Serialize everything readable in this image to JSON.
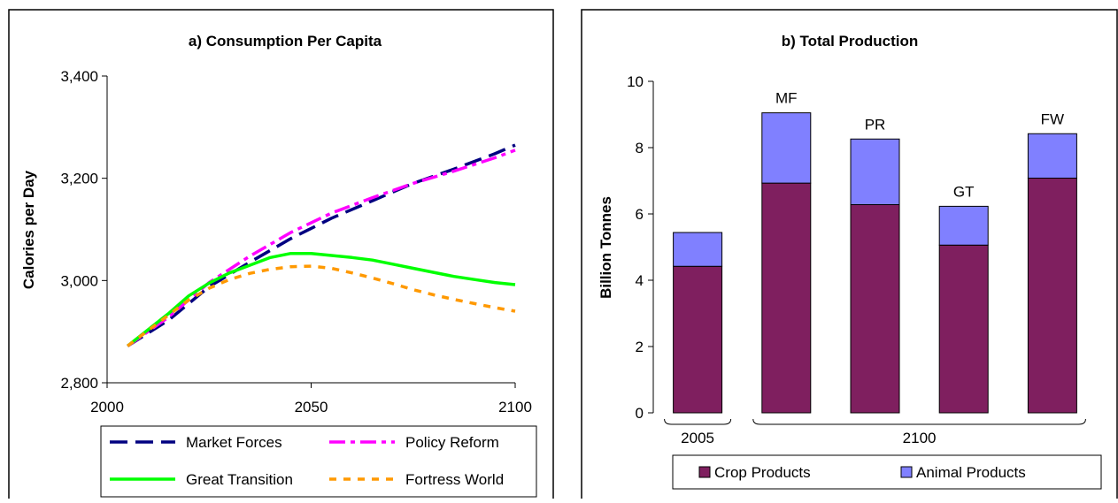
{
  "chart_data": [
    {
      "type": "line",
      "title": "a) Consumption Per Capita",
      "xlabel": "",
      "ylabel": "Calories per Day",
      "xlim": [
        2000,
        2100
      ],
      "ylim": [
        2800,
        3400
      ],
      "x_ticks": [
        "2000",
        "2050",
        "2100"
      ],
      "y_ticks": [
        "2,800",
        "3,000",
        "3,200",
        "3,400"
      ],
      "grid": false,
      "legend_position": "bottom",
      "series": [
        {
          "name": "Market Forces",
          "color": "#000080",
          "dash": "long",
          "x": [
            2005,
            2015,
            2025,
            2035,
            2045,
            2055,
            2065,
            2075,
            2085,
            2095,
            2100
          ],
          "y": [
            2872,
            2922,
            2988,
            3036,
            3082,
            3122,
            3156,
            3190,
            3218,
            3248,
            3265
          ]
        },
        {
          "name": "Policy Reform",
          "color": "#FF00FF",
          "dash": "dashdot",
          "x": [
            2005,
            2015,
            2025,
            2035,
            2045,
            2055,
            2065,
            2075,
            2085,
            2095,
            2100
          ],
          "y": [
            2872,
            2928,
            2996,
            3048,
            3094,
            3132,
            3162,
            3190,
            3214,
            3240,
            3255
          ]
        },
        {
          "name": "Great Transition",
          "color": "#00FF00",
          "dash": "solid",
          "x": [
            2005,
            2015,
            2020,
            2025,
            2030,
            2035,
            2040,
            2045,
            2050,
            2055,
            2060,
            2065,
            2070,
            2075,
            2080,
            2085,
            2090,
            2095,
            2100
          ],
          "y": [
            2872,
            2935,
            2970,
            2995,
            3015,
            3030,
            3045,
            3053,
            3053,
            3049,
            3045,
            3040,
            3032,
            3024,
            3016,
            3008,
            3002,
            2996,
            2992
          ]
        },
        {
          "name": "Fortress World",
          "color": "#FF9900",
          "dash": "short",
          "x": [
            2005,
            2015,
            2020,
            2025,
            2030,
            2035,
            2040,
            2045,
            2050,
            2055,
            2060,
            2065,
            2070,
            2075,
            2080,
            2085,
            2090,
            2095,
            2100
          ],
          "y": [
            2872,
            2932,
            2962,
            2985,
            3002,
            3014,
            3022,
            3027,
            3028,
            3024,
            3015,
            3005,
            2994,
            2982,
            2972,
            2963,
            2955,
            2947,
            2940
          ]
        }
      ]
    },
    {
      "type": "bar",
      "stacked": true,
      "title": "b) Total Production",
      "xlabel": "",
      "ylabel": "Billion Tonnes",
      "ylim": [
        0,
        10
      ],
      "y_ticks": [
        "0",
        "2",
        "4",
        "6",
        "8",
        "10"
      ],
      "grid": false,
      "legend_position": "bottom",
      "categories": [
        "",
        "MF",
        "PR",
        "GT",
        "FW"
      ],
      "groups": [
        {
          "label": "2005",
          "categories": [
            0
          ]
        },
        {
          "label": "2100",
          "categories": [
            1,
            2,
            3,
            4
          ]
        }
      ],
      "series": [
        {
          "name": "Crop Products",
          "color": "#7F1F5F",
          "values": [
            4.42,
            6.93,
            6.28,
            5.06,
            7.08
          ]
        },
        {
          "name": "Animal Products",
          "color": "#8080FF",
          "values": [
            1.02,
            2.12,
            1.98,
            1.17,
            1.34
          ]
        }
      ]
    }
  ]
}
